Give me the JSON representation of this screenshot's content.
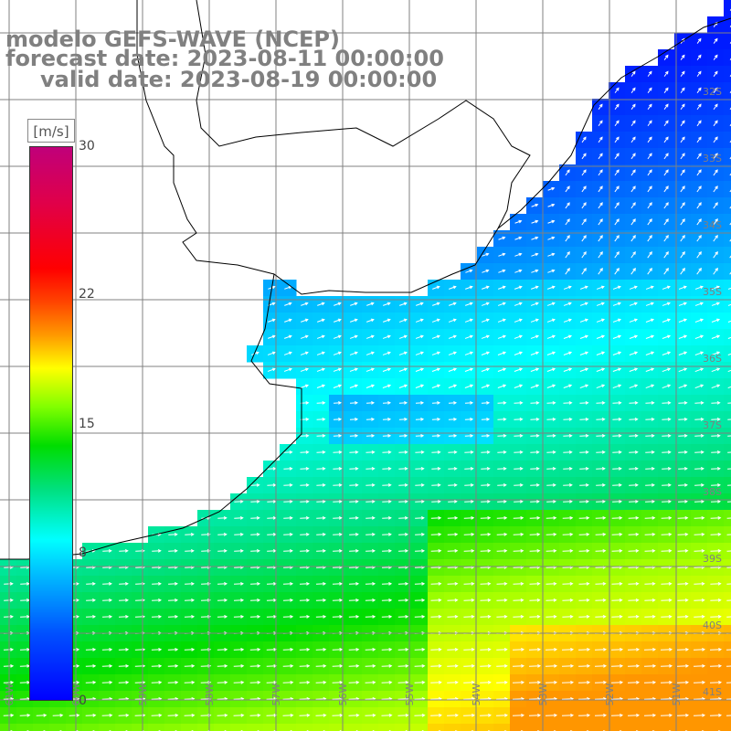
{
  "title": {
    "line1": "modelo GEFS-WAVE (NCEP)",
    "line2": "forecast date: 2023-08-11 00:00:00",
    "line3": "valid date: 2023-08-19 00:00:00"
  },
  "colorbar": {
    "unit": "[m/s]",
    "ticks": [
      "30",
      "22",
      "15",
      "8",
      "0"
    ],
    "tick_values": [
      30,
      22,
      15,
      8,
      0
    ],
    "min": 0,
    "max": 30,
    "colors": [
      "#0000ff",
      "#00bfff",
      "#00ffff",
      "#00dd00",
      "#ffff00",
      "#ff9900",
      "#ff0000",
      "#c0007a"
    ]
  },
  "lat_labels": [
    "32S",
    "33S",
    "34S",
    "35S",
    "36S",
    "37S",
    "38S",
    "39S",
    "40S",
    "41S"
  ],
  "lon_labels": [
    "61W",
    "60W",
    "59W",
    "58W",
    "57W",
    "56W",
    "55W",
    "54W",
    "53W",
    "52W",
    "51W"
  ],
  "colors": {
    "coastline": "#000000",
    "grid": "#808080",
    "arrows": "#ffffff",
    "title": "#808080"
  }
}
